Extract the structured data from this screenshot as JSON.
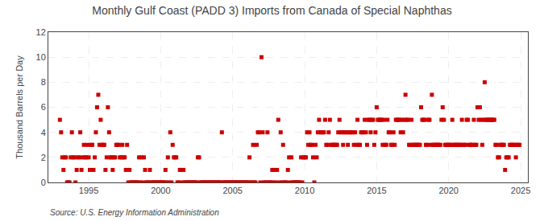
{
  "chart_data": {
    "type": "scatter",
    "title": "Monthly Gulf Coast (PADD 3) Imports from Canada of Special Naphthas",
    "ylabel": "Thousand Barrels per Day",
    "annotations": [
      "Source: U.S. Energy Information Administration"
    ],
    "color": "#cc0000",
    "marker": "square",
    "grid": true,
    "xlim": [
      1992.2,
      2025.5
    ],
    "ylim": [
      0,
      12
    ],
    "xticks": [
      1995,
      2000,
      2005,
      2010,
      2015,
      2020,
      2025
    ],
    "yticks": [
      0,
      2,
      4,
      6,
      8,
      10,
      12
    ],
    "x": [
      1993.0,
      1993.083,
      1993.167,
      1993.25,
      1993.333,
      1993.417,
      1993.5,
      1993.583,
      1993.667,
      1993.75,
      1993.833,
      1993.917,
      1994.0,
      1994.083,
      1994.167,
      1994.25,
      1994.333,
      1994.417,
      1994.5,
      1994.583,
      1994.667,
      1994.75,
      1994.833,
      1994.917,
      1995.0,
      1995.083,
      1995.167,
      1995.25,
      1995.333,
      1995.417,
      1995.5,
      1995.583,
      1995.667,
      1995.75,
      1995.833,
      1995.917,
      1996.0,
      1996.083,
      1996.167,
      1996.25,
      1996.333,
      1996.417,
      1996.5,
      1996.583,
      1996.667,
      1996.75,
      1996.833,
      1996.917,
      1997.0,
      1997.083,
      1997.167,
      1997.25,
      1997.333,
      1997.417,
      1997.5,
      1997.583,
      1997.667,
      1997.75,
      1997.833,
      1997.917,
      1998.0,
      1998.083,
      1998.167,
      1998.25,
      1998.333,
      1998.417,
      1998.5,
      1998.583,
      1998.667,
      1998.75,
      1998.833,
      1998.917,
      1999.0,
      1999.083,
      1999.167,
      1999.25,
      1999.333,
      1999.417,
      1999.5,
      1999.583,
      1999.667,
      1999.75,
      1999.833,
      1999.917,
      2000.0,
      2000.083,
      2000.167,
      2000.25,
      2000.333,
      2000.417,
      2000.5,
      2000.583,
      2000.667,
      2000.75,
      2000.833,
      2000.917,
      2001.0,
      2001.083,
      2001.167,
      2001.25,
      2001.333,
      2001.417,
      2001.5,
      2001.583,
      2001.667,
      2001.75,
      2001.833,
      2001.917,
      2002.0,
      2002.083,
      2002.167,
      2002.25,
      2002.333,
      2002.417,
      2002.5,
      2002.583,
      2002.667,
      2002.75,
      2002.833,
      2002.917,
      2003.0,
      2003.083,
      2003.167,
      2003.25,
      2003.333,
      2003.417,
      2003.5,
      2003.583,
      2003.667,
      2003.75,
      2003.833,
      2003.917,
      2004.0,
      2004.083,
      2004.167,
      2004.25,
      2004.333,
      2004.417,
      2004.5,
      2004.583,
      2004.667,
      2004.75,
      2004.833,
      2004.917,
      2005.0,
      2005.083,
      2005.167,
      2005.25,
      2005.333,
      2005.417,
      2005.5,
      2005.583,
      2005.667,
      2005.75,
      2005.833,
      2005.917,
      2006.0,
      2006.083,
      2006.167,
      2006.25,
      2006.333,
      2006.417,
      2006.5,
      2006.583,
      2006.667,
      2006.75,
      2006.833,
      2006.917,
      2007.0,
      2007.083,
      2007.167,
      2007.25,
      2007.333,
      2007.417,
      2007.5,
      2007.583,
      2007.667,
      2007.75,
      2007.833,
      2007.917,
      2008.0,
      2008.083,
      2008.167,
      2008.25,
      2008.333,
      2008.417,
      2008.5,
      2008.583,
      2008.667,
      2008.75,
      2008.833,
      2008.917,
      2009.0,
      2009.083,
      2009.167,
      2009.25,
      2009.333,
      2009.417,
      2009.5,
      2009.583,
      2009.667,
      2009.75,
      2009.833,
      2009.917,
      2010.0,
      2010.083,
      2010.167,
      2010.25,
      2010.333,
      2010.417,
      2010.5,
      2010.583,
      2010.667,
      2010.75,
      2010.833,
      2010.917,
      2011.0,
      2011.083,
      2011.167,
      2011.25,
      2011.333,
      2011.417,
      2011.5,
      2011.583,
      2011.667,
      2011.75,
      2011.833,
      2011.917,
      2012.0,
      2012.083,
      2012.167,
      2012.25,
      2012.333,
      2012.417,
      2012.5,
      2012.583,
      2012.667,
      2012.75,
      2012.833,
      2012.917,
      2013.0,
      2013.083,
      2013.167,
      2013.25,
      2013.333,
      2013.417,
      2013.5,
      2013.583,
      2013.667,
      2013.75,
      2013.833,
      2013.917,
      2014.0,
      2014.083,
      2014.167,
      2014.25,
      2014.333,
      2014.417,
      2014.5,
      2014.583,
      2014.667,
      2014.75,
      2014.833,
      2014.917,
      2015.0,
      2015.083,
      2015.167,
      2015.25,
      2015.333,
      2015.417,
      2015.5,
      2015.583,
      2015.667,
      2015.75,
      2015.833,
      2015.917,
      2016.0,
      2016.083,
      2016.167,
      2016.25,
      2016.333,
      2016.417,
      2016.5,
      2016.583,
      2016.667,
      2016.75,
      2016.833,
      2016.917,
      2017.0,
      2017.083,
      2017.167,
      2017.25,
      2017.333,
      2017.417,
      2017.5,
      2017.583,
      2017.667,
      2017.75,
      2017.833,
      2017.917,
      2018.0,
      2018.083,
      2018.167,
      2018.25,
      2018.333,
      2018.417,
      2018.5,
      2018.583,
      2018.667,
      2018.75,
      2018.833,
      2018.917,
      2019.0,
      2019.083,
      2019.167,
      2019.25,
      2019.333,
      2019.417,
      2019.5,
      2019.583,
      2019.667,
      2019.75,
      2019.833,
      2019.917,
      2020.0,
      2020.083,
      2020.167,
      2020.25,
      2020.333,
      2020.417,
      2020.5,
      2020.583,
      2020.667,
      2020.75,
      2020.833,
      2020.917,
      2021.0,
      2021.083,
      2021.167,
      2021.25,
      2021.333,
      2021.417,
      2021.5,
      2021.583,
      2021.667,
      2021.75,
      2021.833,
      2021.917,
      2022.0,
      2022.083,
      2022.167,
      2022.25,
      2022.333,
      2022.417,
      2022.5,
      2022.583,
      2022.667,
      2022.75,
      2022.833,
      2022.917,
      2023.0,
      2023.083,
      2023.167,
      2023.25,
      2023.333,
      2023.417,
      2023.5,
      2023.583,
      2023.667,
      2023.75,
      2023.833,
      2023.917,
      2024.0,
      2024.083,
      2024.167,
      2024.25,
      2024.333,
      2024.417,
      2024.5,
      2024.583,
      2024.667,
      2024.75,
      2024.833,
      2024.917
    ],
    "values": [
      5,
      4,
      2,
      1,
      2,
      2,
      0,
      0,
      0,
      2,
      4,
      2,
      2,
      0,
      1,
      2,
      2,
      4,
      1,
      2,
      3,
      2,
      2,
      3,
      2,
      1,
      3,
      3,
      1,
      2,
      4,
      6,
      7,
      3,
      5,
      3,
      3,
      3,
      1,
      2,
      6,
      4,
      2,
      2,
      1,
      2,
      2,
      3,
      3,
      3,
      2,
      2,
      3,
      2,
      2,
      1,
      3,
      0,
      1,
      0,
      0,
      0,
      0,
      0,
      0,
      0,
      2,
      0,
      2,
      0,
      2,
      1,
      0,
      0,
      0,
      1,
      0,
      0,
      0,
      0,
      0,
      0,
      0,
      0,
      0,
      0,
      0,
      0,
      1,
      0,
      2,
      0,
      4,
      0,
      3,
      2,
      2,
      2,
      0,
      0,
      1,
      1,
      0,
      1,
      0,
      0,
      0,
      0,
      0,
      0,
      0,
      0,
      0,
      0,
      0,
      2,
      2,
      0,
      0,
      0,
      0,
      0,
      0,
      0,
      0,
      0,
      0,
      0,
      0,
      0,
      0,
      0,
      0,
      0,
      0,
      4,
      0,
      0,
      0,
      0,
      0,
      0,
      0,
      0,
      0,
      0,
      0,
      0,
      0,
      0,
      0,
      0,
      0,
      0,
      0,
      0,
      0,
      0,
      2,
      0,
      0,
      3,
      0,
      0,
      3,
      4,
      4,
      0,
      10,
      4,
      0,
      0,
      0,
      4,
      0,
      0,
      0,
      1,
      0,
      1,
      0,
      1,
      5,
      0,
      4,
      0,
      3,
      0,
      0,
      0,
      1,
      2,
      0,
      2,
      0,
      0,
      0,
      0,
      0,
      0,
      0,
      2,
      0,
      2,
      2,
      2,
      4,
      3,
      4,
      3,
      3,
      2,
      0,
      3,
      2,
      4,
      5,
      4,
      4,
      4,
      4,
      5,
      3,
      3,
      4,
      5,
      3,
      3,
      3,
      3,
      3,
      3,
      4,
      5,
      4,
      4,
      3,
      4,
      4,
      4,
      3,
      4,
      4,
      4,
      4,
      3,
      4,
      3,
      5,
      3,
      3,
      4,
      4,
      4,
      5,
      4,
      3,
      5,
      5,
      4,
      5,
      5,
      3,
      4,
      6,
      5,
      5,
      5,
      5,
      3,
      5,
      3,
      3,
      5,
      4,
      4,
      3,
      3,
      4,
      3,
      5,
      5,
      5,
      5,
      4,
      5,
      4,
      5,
      7,
      5,
      5,
      3,
      3,
      5,
      3,
      3,
      3,
      3,
      3,
      3,
      3,
      6,
      5,
      5,
      5,
      3,
      3,
      5,
      5,
      3,
      7,
      3,
      3,
      3,
      3,
      3,
      3,
      3,
      5,
      6,
      5,
      3,
      3,
      3,
      3,
      3,
      3,
      5,
      3,
      3,
      3,
      3,
      3,
      3,
      3,
      5,
      3,
      3,
      3,
      5,
      5,
      3,
      3,
      3,
      3,
      5,
      3,
      3,
      6,
      5,
      6,
      5,
      3,
      5,
      8,
      5,
      5,
      5,
      5,
      5,
      5,
      5,
      5,
      3,
      3,
      2,
      2,
      3,
      3,
      3,
      3,
      1,
      2,
      2,
      2,
      3,
      3,
      3,
      3,
      3,
      2,
      3,
      3,
      3
    ]
  }
}
